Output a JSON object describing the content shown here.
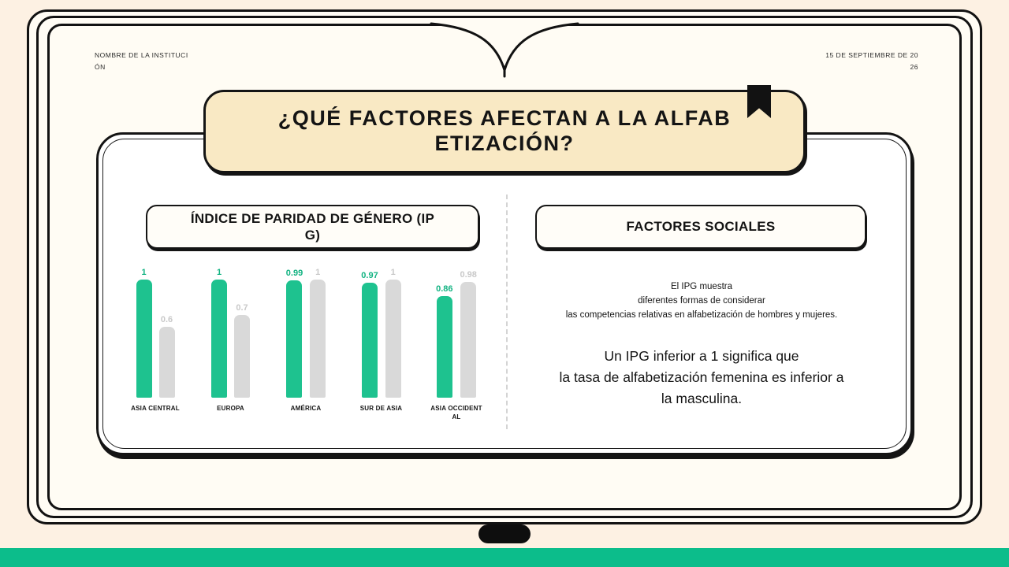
{
  "header": {
    "institution_lines": [
      "NOMBRE DE LA INSTITUCI",
      "ÓN"
    ],
    "date_lines": [
      "15 DE SEPTIEMBRE DE 20",
      "26"
    ]
  },
  "title_banner": {
    "lines": [
      "¿QUÉ FACTORES AFECTAN A LA ALFAB",
      "ETIZACIÓN?"
    ]
  },
  "left_panel": {
    "heading_lines": [
      "ÍNDICE DE PARIDAD DE GÉNERO (IP",
      "G)"
    ]
  },
  "right_panel": {
    "heading": "FACTORES SOCIALES",
    "intro_lines": [
      "El IPG muestra",
      "diferentes formas de considerar",
      "las competencias relativas en alfabetización de hombres y mujeres."
    ],
    "conclusion_lines": [
      "Un IPG inferior a 1 significa que",
      "la tasa de alfabetización femenina es inferior a",
      "la masculina."
    ]
  },
  "chart_data": {
    "type": "bar",
    "title": "ÍNDICE DE PARIDAD DE GÉNERO (IPG)",
    "categories": [
      "ASIA CENTRAL",
      "EUROPA",
      "AMÉRICA",
      "SUR DE ASIA",
      "ASIA OCCIDENTAL"
    ],
    "series": [
      {
        "name": "serie-verde",
        "color": "#1ec28f",
        "label_color": "#12b382",
        "values": [
          1,
          1,
          0.99,
          0.97,
          0.86
        ]
      },
      {
        "name": "serie-gris",
        "color": "#d9d9d9",
        "label_color": "#c9c9c9",
        "values": [
          0.6,
          0.7,
          1,
          1,
          0.98
        ]
      }
    ],
    "ylim": [
      0,
      1
    ],
    "value_labels": true,
    "legend": "none",
    "grid": false
  },
  "colors": {
    "background": "#fdf1e3",
    "page": "#fffcf4",
    "banner": "#f9e9c4",
    "green": "#1ec28f",
    "gray_bar": "#d9d9d9",
    "ink": "#141414",
    "bottom_strip": "#0cbd8b"
  }
}
